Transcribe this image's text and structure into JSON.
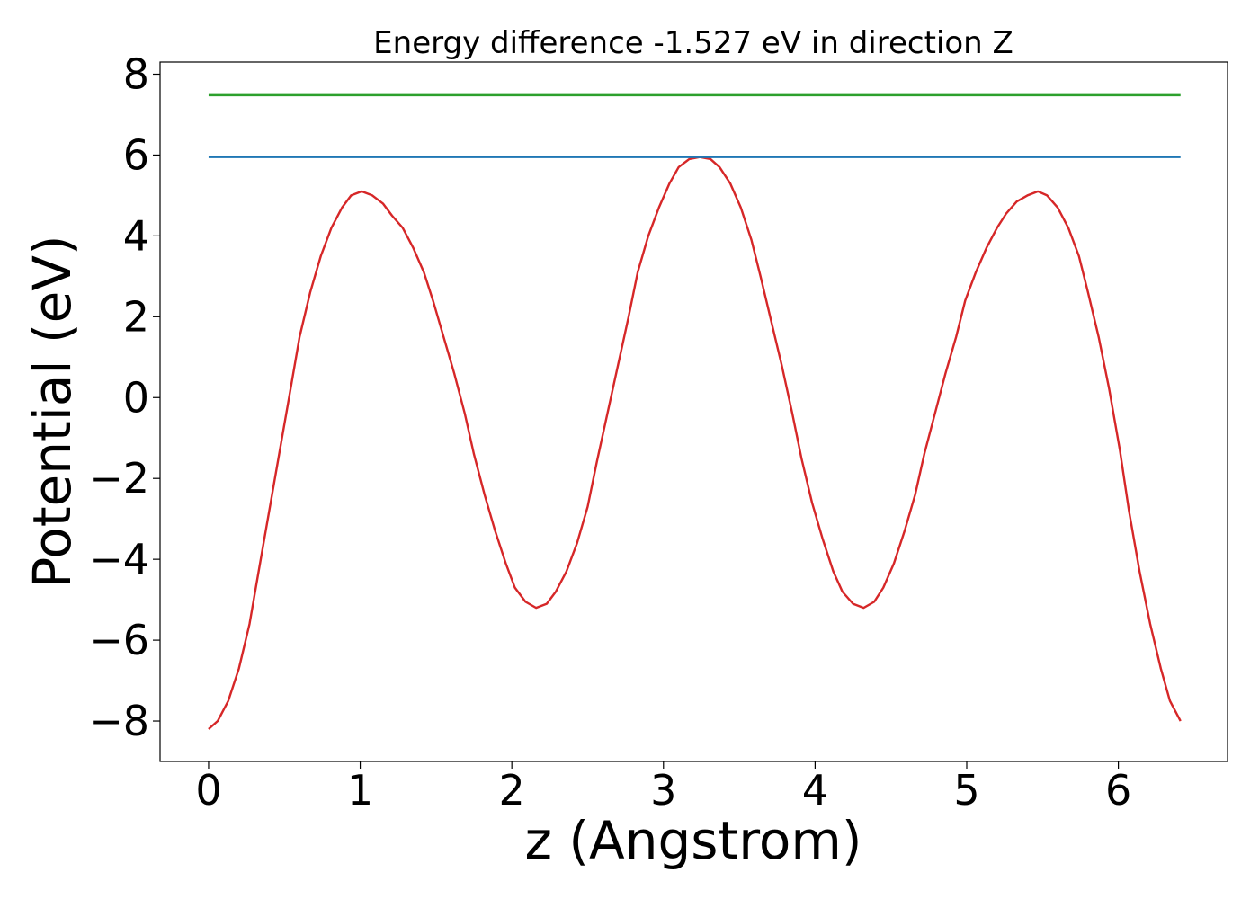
{
  "chart_data": {
    "type": "line",
    "title": "Energy difference -1.527 eV in direction Z",
    "xlabel": "z (Angstrom)",
    "ylabel": "Potential (eV)",
    "xlim": [
      -0.32,
      6.72
    ],
    "ylim": [
      -9.0,
      8.3
    ],
    "xticks": [
      0,
      1,
      2,
      3,
      4,
      5,
      6
    ],
    "yticks": [
      -8,
      -6,
      -4,
      -2,
      0,
      2,
      4,
      6,
      8
    ],
    "xtick_labels": [
      "0",
      "1",
      "2",
      "3",
      "4",
      "5",
      "6"
    ],
    "ytick_labels": [
      "−8",
      "−6",
      "−4",
      "−2",
      "0",
      "2",
      "4",
      "6",
      "8"
    ],
    "grid": false,
    "series": [
      {
        "color": "#d62728",
        "x": [
          0.0,
          0.06,
          0.13,
          0.2,
          0.27,
          0.33,
          0.4,
          0.47,
          0.54,
          0.6,
          0.67,
          0.74,
          0.81,
          0.88,
          0.94,
          1.01,
          1.08,
          1.15,
          1.21,
          1.28,
          1.35,
          1.42,
          1.48,
          1.55,
          1.62,
          1.69,
          1.75,
          1.82,
          1.89,
          1.96,
          2.02,
          2.09,
          2.16,
          2.23,
          2.29,
          2.36,
          2.43,
          2.5,
          2.56,
          2.63,
          2.7,
          2.77,
          2.83,
          2.9,
          2.97,
          3.04,
          3.1,
          3.17,
          3.24,
          3.31,
          3.37,
          3.44,
          3.51,
          3.58,
          3.64,
          3.71,
          3.78,
          3.85,
          3.91,
          3.98,
          4.05,
          4.12,
          4.18,
          4.25,
          4.32,
          4.39,
          4.45,
          4.52,
          4.59,
          4.66,
          4.72,
          4.79,
          4.86,
          4.93,
          4.99,
          5.06,
          5.13,
          5.2,
          5.26,
          5.33,
          5.4,
          5.47,
          5.53,
          5.6,
          5.67,
          5.74,
          5.8,
          5.87,
          5.94,
          6.01,
          6.07,
          6.14,
          6.21,
          6.28,
          6.34,
          6.41
        ],
        "y": [
          -8.2,
          -8.0,
          -7.5,
          -6.7,
          -5.6,
          -4.3,
          -2.8,
          -1.3,
          0.2,
          1.5,
          2.6,
          3.5,
          4.2,
          4.7,
          5.0,
          5.1,
          5.0,
          4.8,
          4.5,
          4.2,
          3.7,
          3.1,
          2.4,
          1.5,
          0.6,
          -0.4,
          -1.4,
          -2.4,
          -3.3,
          -4.1,
          -4.7,
          -5.05,
          -5.2,
          -5.1,
          -4.8,
          -4.3,
          -3.6,
          -2.7,
          -1.6,
          -0.4,
          0.8,
          2.0,
          3.1,
          4.0,
          4.7,
          5.3,
          5.7,
          5.9,
          5.95,
          5.9,
          5.7,
          5.3,
          4.7,
          3.9,
          3.0,
          1.9,
          0.8,
          -0.4,
          -1.5,
          -2.6,
          -3.5,
          -4.3,
          -4.8,
          -5.1,
          -5.2,
          -5.05,
          -4.7,
          -4.1,
          -3.3,
          -2.4,
          -1.4,
          -0.4,
          0.6,
          1.5,
          2.4,
          3.1,
          3.7,
          4.2,
          4.55,
          4.85,
          5.0,
          5.1,
          5.0,
          4.7,
          4.2,
          3.5,
          2.6,
          1.5,
          0.2,
          -1.3,
          -2.8,
          -4.3,
          -5.6,
          -6.7,
          -7.5,
          -8.0
        ]
      },
      {
        "color": "#1f77b4",
        "x": [
          0.0,
          6.41
        ],
        "y": [
          5.95,
          5.95
        ]
      },
      {
        "color": "#2ca02c",
        "x": [
          0.0,
          6.41
        ],
        "y": [
          7.48,
          7.48
        ]
      }
    ]
  }
}
